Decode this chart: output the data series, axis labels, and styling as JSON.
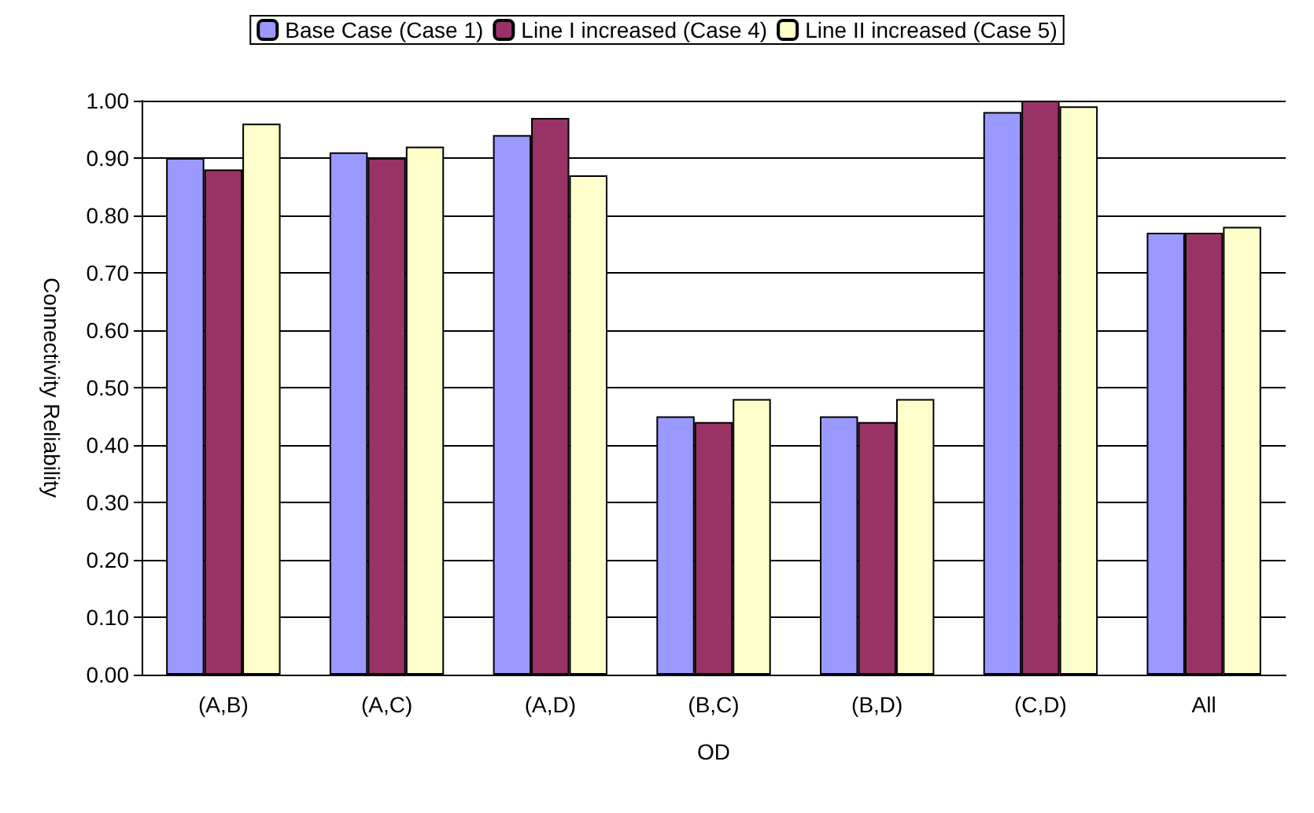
{
  "chart_data": {
    "type": "bar",
    "xlabel": "OD",
    "ylabel": "Connectivity Reliability",
    "categories": [
      "(A,B)",
      "(A,C)",
      "(A,D)",
      "(B,C)",
      "(B,D)",
      "(C,D)",
      "All"
    ],
    "series": [
      {
        "name": "Base Case (Case 1)",
        "color": "#9999ff",
        "values": [
          0.9,
          0.91,
          0.94,
          0.45,
          0.45,
          0.98,
          0.77
        ]
      },
      {
        "name": "Line I increased (Case 4)",
        "color": "#993366",
        "values": [
          0.88,
          0.9,
          0.97,
          0.44,
          0.44,
          1.0,
          0.77
        ]
      },
      {
        "name": "Line II increased (Case 5)",
        "color": "#ffffcc",
        "values": [
          0.96,
          0.92,
          0.87,
          0.48,
          0.48,
          0.99,
          0.78
        ]
      }
    ],
    "ylim": [
      0,
      1
    ],
    "yticks": [
      {
        "value": 0,
        "label": "0.00"
      },
      {
        "value": 0.1,
        "label": "0.10"
      },
      {
        "value": 0.2,
        "label": "0.20"
      },
      {
        "value": 0.3,
        "label": "0.30"
      },
      {
        "value": 0.4,
        "label": "0.40"
      },
      {
        "value": 0.5,
        "label": "0.50"
      },
      {
        "value": 0.6,
        "label": "0.60"
      },
      {
        "value": 0.7,
        "label": "0.70"
      },
      {
        "value": 0.8,
        "label": "0.80"
      },
      {
        "value": 0.9,
        "label": "0.90"
      },
      {
        "value": 1.0,
        "label": "1.00"
      }
    ],
    "grid": "y",
    "legend": "top"
  }
}
